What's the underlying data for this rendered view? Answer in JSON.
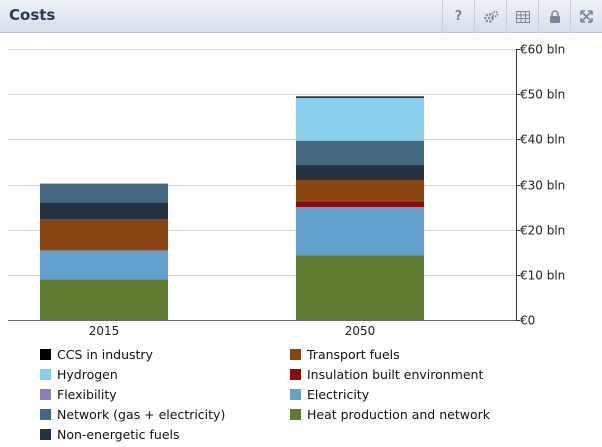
{
  "header": {
    "title": "Costs",
    "tools": [
      {
        "name": "help",
        "label": "?"
      },
      {
        "name": "settings",
        "icon": "gears-icon"
      },
      {
        "name": "table",
        "icon": "table-icon"
      },
      {
        "name": "lock",
        "icon": "lock-icon"
      },
      {
        "name": "fullscreen",
        "icon": "expand-icon"
      }
    ]
  },
  "chart_data": {
    "type": "bar",
    "stacked": true,
    "categories": [
      "2015",
      "2050"
    ],
    "ylim": [
      0,
      60
    ],
    "yticks": [
      0,
      10,
      20,
      30,
      40,
      50,
      60
    ],
    "ytick_labels": [
      "€0",
      "€10 bln",
      "€20 bln",
      "€30 bln",
      "€40 bln",
      "€50 bln",
      "€60 bln"
    ],
    "y_axis_position": "right",
    "grid": true,
    "legend_position": "bottom",
    "series": [
      {
        "name": "Heat production and network",
        "color": "#5e7a2c",
        "values": [
          9.0,
          14.3
        ]
      },
      {
        "name": "Electricity",
        "color": "#62a2cc",
        "values": [
          6.4,
          10.7
        ]
      },
      {
        "name": "Flexibility",
        "color": "#8e7cb4",
        "values": [
          0.0,
          0.0
        ]
      },
      {
        "name": "Insulation built environment",
        "color": "#8b0a0a",
        "values": [
          0.0,
          1.3
        ]
      },
      {
        "name": "Transport fuels",
        "color": "#8b4513",
        "values": [
          6.8,
          4.7
        ]
      },
      {
        "name": "Non-energetic fuels",
        "color": "#243344",
        "values": [
          3.8,
          3.4
        ]
      },
      {
        "name": "Network (gas + electricity)",
        "color": "#426882",
        "values": [
          4.2,
          5.3
        ]
      },
      {
        "name": "Hydrogen",
        "color": "#87ceeb",
        "values": [
          0.0,
          9.5
        ]
      },
      {
        "name": "CCS in industry",
        "color": "#000000",
        "values": [
          0.0,
          0.3
        ]
      }
    ],
    "legend_order": [
      "CCS in industry",
      "Transport fuels",
      "Hydrogen",
      "Insulation built environment",
      "Flexibility",
      "Electricity",
      "Network (gas + electricity)",
      "Heat production and network",
      "Non-energetic fuels"
    ]
  }
}
